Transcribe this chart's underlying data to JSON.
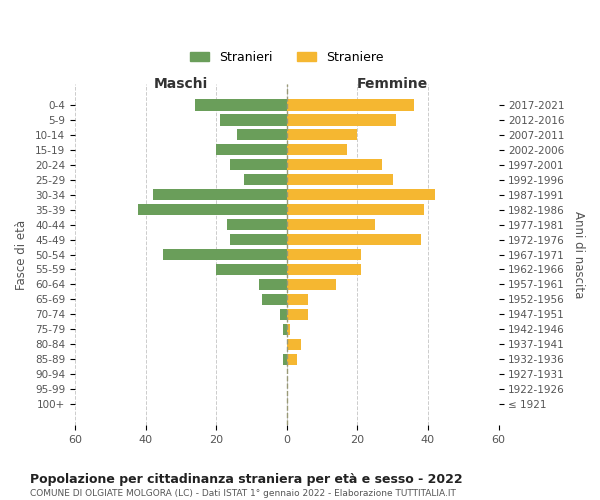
{
  "age_groups": [
    "100+",
    "95-99",
    "90-94",
    "85-89",
    "80-84",
    "75-79",
    "70-74",
    "65-69",
    "60-64",
    "55-59",
    "50-54",
    "45-49",
    "40-44",
    "35-39",
    "30-34",
    "25-29",
    "20-24",
    "15-19",
    "10-14",
    "5-9",
    "0-4"
  ],
  "birth_years": [
    "≤ 1921",
    "1922-1926",
    "1927-1931",
    "1932-1936",
    "1937-1941",
    "1942-1946",
    "1947-1951",
    "1952-1956",
    "1957-1961",
    "1962-1966",
    "1967-1971",
    "1972-1976",
    "1977-1981",
    "1982-1986",
    "1987-1991",
    "1992-1996",
    "1997-2001",
    "2002-2006",
    "2007-2011",
    "2012-2016",
    "2017-2021"
  ],
  "maschi": [
    0,
    0,
    0,
    1,
    0,
    1,
    2,
    7,
    8,
    20,
    35,
    16,
    17,
    42,
    38,
    12,
    16,
    20,
    14,
    19,
    26
  ],
  "femmine": [
    0,
    0,
    0,
    3,
    4,
    1,
    6,
    6,
    14,
    21,
    21,
    38,
    25,
    39,
    42,
    30,
    27,
    17,
    20,
    31,
    36
  ],
  "maschi_color": "#6a9e5a",
  "femmine_color": "#f5b731",
  "title_main": "Popolazione per cittadinanza straniera per età e sesso - 2022",
  "title_sub": "COMUNE DI OLGIATE MOLGORA (LC) - Dati ISTAT 1° gennaio 2022 - Elaborazione TUTTITALIA.IT",
  "xlabel_left": "Maschi",
  "xlabel_right": "Femmine",
  "ylabel_left": "Fasce di età",
  "ylabel_right": "Anni di nascita",
  "legend_maschi": "Stranieri",
  "legend_femmine": "Straniere",
  "xlim": 60,
  "background_color": "#ffffff",
  "grid_color": "#cccccc"
}
